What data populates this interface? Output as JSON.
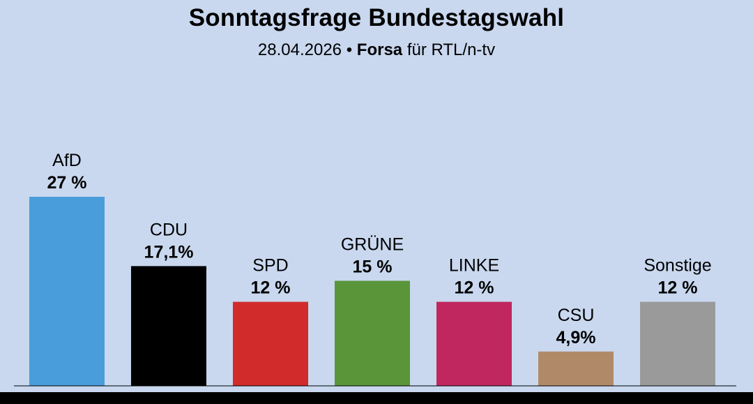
{
  "header": {
    "title": "Sonntagsfrage Bundestagswahl",
    "date": "28.04.2026",
    "separator": "•",
    "institute": "Forsa",
    "client": "für RTL/n-tv"
  },
  "chart_data": {
    "type": "bar",
    "title": "Sonntagsfrage Bundestagswahl",
    "subtitle": "28.04.2026 • Forsa für RTL/n-tv",
    "xlabel": "",
    "ylabel": "",
    "ylim": [
      0,
      27
    ],
    "grid": false,
    "legend": "none",
    "categories": [
      "AfD",
      "CDU",
      "SPD",
      "GRÜNE",
      "LINKE",
      "CSU",
      "Sonstige"
    ],
    "values": [
      27,
      17.1,
      12,
      15,
      12,
      4.9,
      12
    ],
    "value_labels": [
      "27 %",
      "17,1%",
      "12 %",
      "15 %",
      "12 %",
      "4,9%",
      "12 %"
    ],
    "colors": [
      "#4a9ddb",
      "#000000",
      "#d22b2b",
      "#5a953a",
      "#c0275f",
      "#b08a68",
      "#9a9a9a"
    ]
  }
}
